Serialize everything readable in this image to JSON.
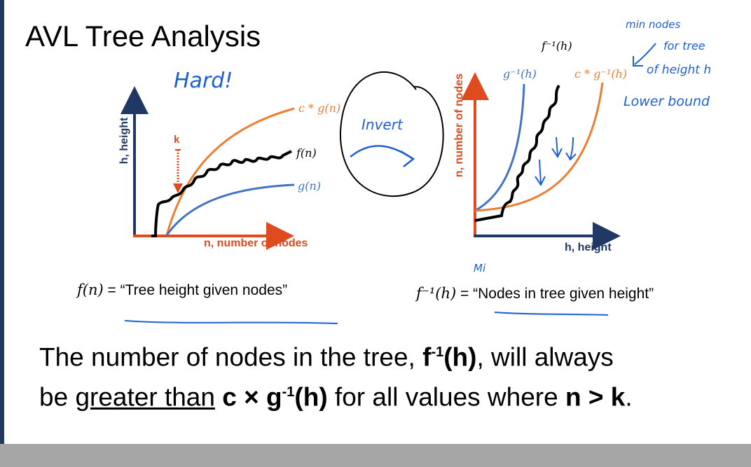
{
  "slide": {
    "title": "AVL Tree Analysis",
    "annotations": {
      "hard": "Hard!",
      "invert": "Invert",
      "min_nodes": "min nodes",
      "for_tree": "for tree",
      "of_height": "of height h",
      "lower_bound": "Lower bound",
      "mi": "Mi"
    },
    "left_chart": {
      "y_axis_label": "h, height",
      "x_axis_label": "n, number of nodes",
      "k_label": "k",
      "curve_labels": {
        "cg": "c * g(n)",
        "f": "f(n)",
        "g": "g(n)"
      }
    },
    "right_chart": {
      "y_axis_label": "n, number of nodes",
      "x_axis_label": "h, height",
      "curve_labels": {
        "finv": "f⁻¹(h)",
        "ginv": "g⁻¹(h)",
        "cginv": "c * g⁻¹(h)"
      }
    },
    "captions": {
      "left_math": "f(n)",
      "left_text": " = “Tree height given nodes”",
      "right_math": "f⁻¹(h)",
      "right_text": " = “Nodes in tree given height”"
    },
    "summary": {
      "p1": "The number of nodes in the tree, ",
      "b1": "f",
      "sup1": "-1",
      "b2": "(h)",
      "p2": ", will always",
      "p3": "be ",
      "u1": "greater than",
      "p4": " ",
      "b3": "c × g",
      "sup2": "-1",
      "b4": "(h)",
      "p5": " for all values where ",
      "b5": "n > k",
      "p6": "."
    },
    "colors": {
      "accent_orange": "#ed7d31",
      "accent_blue": "#4472c4",
      "axis_navy": "#1f3864",
      "axis_red": "#e04a1f",
      "ink_blue": "#1e5fd6"
    }
  }
}
